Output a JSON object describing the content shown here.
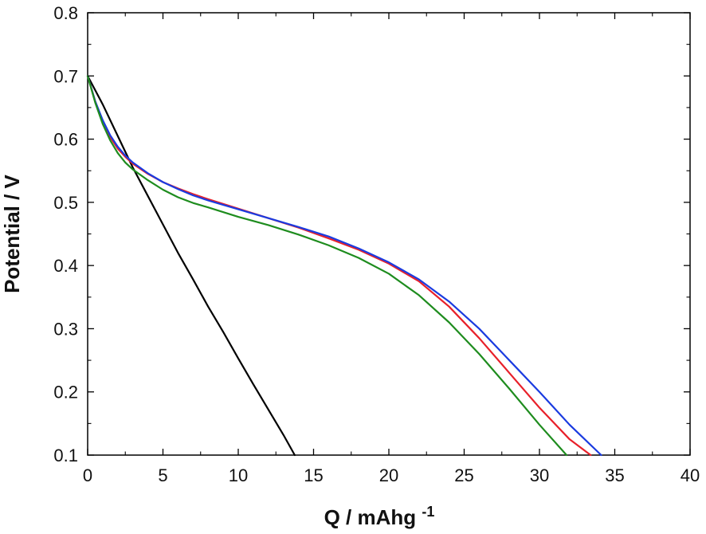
{
  "chart_data": {
    "type": "line",
    "title": "",
    "xlabel": "Q / mAhg",
    "xlabel_superscript": "-1",
    "ylabel": "Potential / V",
    "xlim": [
      0,
      40
    ],
    "ylim": [
      0.1,
      0.8
    ],
    "xticks": [
      0,
      5,
      10,
      15,
      20,
      25,
      30,
      35,
      40
    ],
    "yticks": [
      0.1,
      0.2,
      0.3,
      0.4,
      0.5,
      0.6,
      0.7,
      0.8
    ],
    "xtick_labels": [
      "0",
      "5",
      "10",
      "15",
      "20",
      "25",
      "30",
      "35",
      "40"
    ],
    "ytick_labels": [
      "0.1",
      "0.2",
      "0.3",
      "0.4",
      "0.5",
      "0.6",
      "0.7",
      "0.8"
    ],
    "grid": false,
    "legend": "none",
    "series": [
      {
        "color": "#000000",
        "x": [
          0,
          1,
          2,
          3,
          4,
          5,
          6,
          7,
          8,
          9,
          10,
          11,
          12,
          13,
          13.75
        ],
        "y": [
          0.7,
          0.655,
          0.605,
          0.555,
          0.51,
          0.465,
          0.42,
          0.378,
          0.335,
          0.295,
          0.253,
          0.212,
          0.172,
          0.132,
          0.1
        ]
      },
      {
        "color": "#e8202a",
        "x": [
          0,
          0.5,
          1,
          1.5,
          2,
          2.5,
          3,
          4,
          5,
          6,
          7,
          8,
          10,
          12,
          14,
          16,
          18,
          20,
          22,
          24,
          26,
          28,
          30,
          32,
          33.4
        ],
        "y": [
          0.7,
          0.66,
          0.628,
          0.603,
          0.585,
          0.572,
          0.561,
          0.545,
          0.532,
          0.522,
          0.513,
          0.505,
          0.49,
          0.475,
          0.46,
          0.443,
          0.425,
          0.403,
          0.375,
          0.335,
          0.285,
          0.23,
          0.175,
          0.125,
          0.1
        ]
      },
      {
        "color": "#1a3be0",
        "x": [
          0,
          0.5,
          1,
          1.5,
          2,
          2.5,
          3,
          4,
          5,
          6,
          7,
          8,
          10,
          12,
          14,
          16,
          18,
          20,
          22,
          24,
          26,
          28,
          30,
          32,
          34.1
        ],
        "y": [
          0.7,
          0.66,
          0.63,
          0.606,
          0.588,
          0.574,
          0.563,
          0.546,
          0.532,
          0.521,
          0.511,
          0.503,
          0.489,
          0.475,
          0.461,
          0.446,
          0.427,
          0.405,
          0.378,
          0.343,
          0.3,
          0.25,
          0.2,
          0.148,
          0.1
        ]
      },
      {
        "color": "#1e8c1e",
        "x": [
          0,
          0.5,
          1,
          1.5,
          2,
          2.5,
          3,
          4,
          5,
          6,
          7,
          8,
          10,
          12,
          14,
          16,
          18,
          20,
          22,
          24,
          26,
          28,
          30,
          31.8
        ],
        "y": [
          0.7,
          0.658,
          0.624,
          0.598,
          0.578,
          0.563,
          0.552,
          0.535,
          0.52,
          0.508,
          0.499,
          0.492,
          0.477,
          0.464,
          0.449,
          0.432,
          0.412,
          0.387,
          0.353,
          0.31,
          0.26,
          0.205,
          0.148,
          0.1
        ]
      }
    ]
  }
}
